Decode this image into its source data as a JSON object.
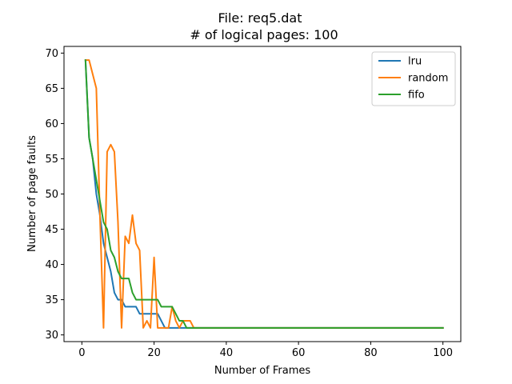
{
  "chart_data": {
    "type": "line",
    "title": "File: req5.dat",
    "subtitle": "# of logical pages: 100",
    "xlabel": "Number of Frames",
    "ylabel": "Number of page faults",
    "xlim": [
      -4.95,
      104.95
    ],
    "ylim": [
      29.05,
      70.95
    ],
    "x_ticks": [
      0,
      20,
      40,
      60,
      80,
      100
    ],
    "y_ticks": [
      30,
      35,
      40,
      45,
      50,
      55,
      60,
      65,
      70
    ],
    "grid": false,
    "legend_position": "top-right",
    "series": [
      {
        "name": "lru",
        "color": "#1f77b4",
        "x": [
          1,
          2,
          3,
          4,
          5,
          6,
          7,
          8,
          9,
          10,
          11,
          12,
          13,
          14,
          15,
          16,
          17,
          18,
          19,
          20,
          21,
          22,
          23,
          24,
          25,
          26,
          27,
          28,
          29,
          30,
          31,
          100
        ],
        "y": [
          69,
          58,
          55,
          50,
          47,
          43,
          41,
          39,
          36,
          35,
          35,
          34,
          34,
          34,
          34,
          33,
          33,
          33,
          33,
          33,
          33,
          32,
          31,
          31,
          31,
          31,
          31,
          31,
          31,
          31,
          31,
          31
        ]
      },
      {
        "name": "random",
        "color": "#ff7f0e",
        "x": [
          1,
          2,
          3,
          4,
          5,
          6,
          7,
          8,
          9,
          10,
          11,
          12,
          13,
          14,
          15,
          16,
          17,
          18,
          19,
          20,
          21,
          22,
          23,
          24,
          25,
          26,
          27,
          28,
          29,
          30,
          31,
          100
        ],
        "y": [
          69,
          69,
          67,
          65,
          47,
          31,
          56,
          57,
          56,
          46,
          31,
          44,
          43,
          47,
          43,
          42,
          31,
          32,
          31,
          41,
          31,
          31,
          31,
          31,
          34,
          32,
          31,
          32,
          32,
          32,
          31,
          31
        ]
      },
      {
        "name": "fifo",
        "color": "#2ca02c",
        "x": [
          1,
          2,
          3,
          4,
          5,
          6,
          7,
          8,
          9,
          10,
          11,
          12,
          13,
          14,
          15,
          16,
          17,
          18,
          19,
          20,
          21,
          22,
          23,
          24,
          25,
          26,
          27,
          28,
          29,
          30,
          31,
          100
        ],
        "y": [
          69,
          58,
          55,
          52,
          49,
          46,
          45,
          42,
          41,
          39,
          38,
          38,
          38,
          36,
          35,
          35,
          35,
          35,
          35,
          35,
          35,
          34,
          34,
          34,
          34,
          33,
          32,
          32,
          31,
          31,
          31,
          31
        ]
      }
    ]
  }
}
